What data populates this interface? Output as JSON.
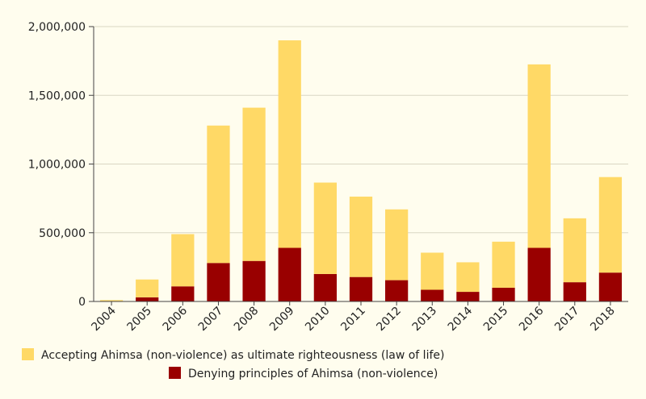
{
  "chart_data": {
    "type": "bar",
    "stacked": true,
    "categories": [
      "2004",
      "2005",
      "2006",
      "2007",
      "2008",
      "2009",
      "2010",
      "2011",
      "2012",
      "2013",
      "2014",
      "2015",
      "2016",
      "2017",
      "2018"
    ],
    "series": [
      {
        "name": "Denying principles of Ahimsa (non-violence)",
        "color": "#990000",
        "values": [
          3000,
          30000,
          110000,
          280000,
          295000,
          390000,
          200000,
          178000,
          155000,
          85000,
          70000,
          100000,
          390000,
          140000,
          210000
        ]
      },
      {
        "name": "Accepting Ahimsa (non-violence) as ultimate righteousness (law of life)",
        "color": "#ffd966",
        "values": [
          7000,
          130000,
          380000,
          1000000,
          1115000,
          1510000,
          665000,
          585000,
          515000,
          270000,
          215000,
          335000,
          1335000,
          465000,
          695000
        ]
      }
    ],
    "ylim": [
      0,
      2000000
    ],
    "yticks": [
      "0",
      "500,000",
      "1,000,000",
      "1,500,000",
      "2,000,000"
    ],
    "ytick_values": [
      0,
      500000,
      1000000,
      1500000,
      2000000
    ],
    "grid": true,
    "legend_position": "bottom",
    "legend_order": [
      1,
      0
    ],
    "xtick_rotation": -45
  }
}
